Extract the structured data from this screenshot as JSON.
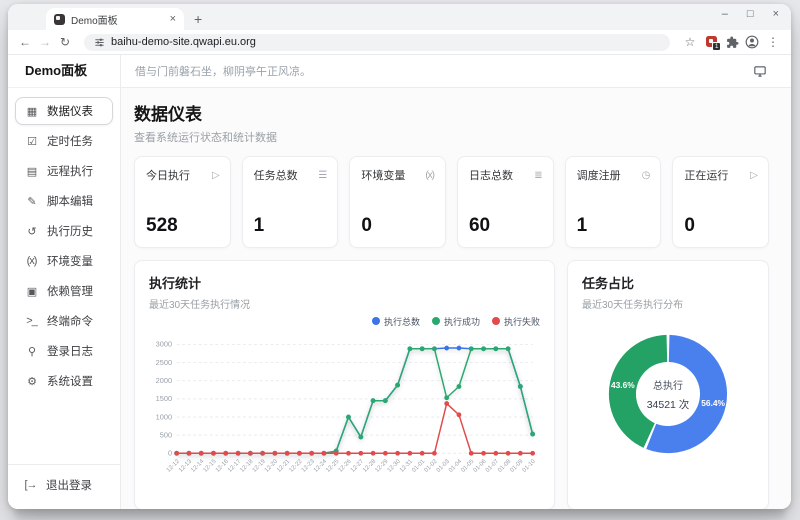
{
  "browser": {
    "tab_title": "Demo面板",
    "url": "baihu-demo-site.qwapi.eu.org",
    "extensions_badge": "1"
  },
  "app": {
    "brand": "Demo面板",
    "topbar": {
      "quote": "借与门前磐石坐，柳阴亭午正风凉。"
    },
    "sidebar": {
      "items": [
        {
          "id": "dashboard",
          "label": "数据仪表",
          "icon": "grid-icon",
          "glyph": "▦",
          "active": true
        },
        {
          "id": "cron-tasks",
          "label": "定时任务",
          "icon": "checklist-icon",
          "glyph": "☑",
          "active": false
        },
        {
          "id": "remote-exec",
          "label": "远程执行",
          "icon": "server-icon",
          "glyph": "▤",
          "active": false
        },
        {
          "id": "script-edit",
          "label": "脚本编辑",
          "icon": "edit-script-icon",
          "glyph": "✎",
          "active": false
        },
        {
          "id": "exec-history",
          "label": "执行历史",
          "icon": "history-icon",
          "glyph": "↺",
          "active": false
        },
        {
          "id": "env-vars",
          "label": "环境变量",
          "icon": "variable-icon",
          "glyph": "(x)",
          "active": false
        },
        {
          "id": "dependencies",
          "label": "依赖管理",
          "icon": "package-icon",
          "glyph": "▣",
          "active": false
        },
        {
          "id": "terminal",
          "label": "终端命令",
          "icon": "terminal-icon",
          "glyph": ">_",
          "active": false
        },
        {
          "id": "login-logs",
          "label": "登录日志",
          "icon": "key-icon",
          "glyph": "⚲",
          "active": false
        },
        {
          "id": "settings",
          "label": "系统设置",
          "icon": "gear-icon",
          "glyph": "⚙",
          "active": false
        }
      ],
      "logout_label": "退出登录"
    },
    "page": {
      "title": "数据仪表",
      "subtitle": "查看系统运行状态和统计数据"
    },
    "stats": [
      {
        "id": "today-exec",
        "label": "今日执行",
        "value": "528",
        "icon": "play-icon",
        "glyph": "▷"
      },
      {
        "id": "task-total",
        "label": "任务总数",
        "value": "1",
        "icon": "checklist-icon",
        "glyph": "☰"
      },
      {
        "id": "env-vars",
        "label": "环境变量",
        "value": "0",
        "icon": "variable-icon",
        "glyph": "(x)"
      },
      {
        "id": "log-total",
        "label": "日志总数",
        "value": "60",
        "icon": "logs-icon",
        "glyph": "≣"
      },
      {
        "id": "schedule-reg",
        "label": "调度注册",
        "value": "1",
        "icon": "clock-icon",
        "glyph": "◷"
      },
      {
        "id": "running",
        "label": "正在运行",
        "value": "0",
        "icon": "play-icon",
        "glyph": "▷"
      }
    ],
    "exec_card": {
      "title": "执行统计",
      "subtitle": "最近30天任务执行情况"
    },
    "pie_card": {
      "title": "任务占比",
      "subtitle": "最近30天任务执行分布",
      "center_label": "总执行",
      "center_value": "34521 次"
    }
  },
  "chart_data": [
    {
      "type": "line",
      "title": "执行统计",
      "x": [
        "12-12",
        "12-13",
        "12-14",
        "12-15",
        "12-16",
        "12-17",
        "12-18",
        "12-19",
        "12-20",
        "12-21",
        "12-22",
        "12-23",
        "12-24",
        "12-25",
        "12-26",
        "12-27",
        "12-28",
        "12-29",
        "12-30",
        "12-31",
        "01-01",
        "01-02",
        "01-03",
        "01-04",
        "01-05",
        "01-06",
        "01-07",
        "01-08",
        "01-09",
        "01-10"
      ],
      "series": [
        {
          "name": "执行总数",
          "color": "#3b74e6",
          "values": [
            0,
            0,
            0,
            0,
            0,
            0,
            0,
            0,
            0,
            0,
            0,
            0,
            0,
            60,
            1000,
            450,
            1450,
            1450,
            1880,
            2880,
            2880,
            2880,
            2900,
            2900,
            2880,
            2880,
            2880,
            2880,
            1840,
            530
          ]
        },
        {
          "name": "执行成功",
          "color": "#2aa96e",
          "values": [
            0,
            0,
            0,
            0,
            0,
            0,
            0,
            0,
            0,
            0,
            0,
            0,
            0,
            60,
            1000,
            450,
            1450,
            1450,
            1880,
            2880,
            2880,
            2880,
            1530,
            1840,
            2880,
            2880,
            2880,
            2880,
            1840,
            530
          ]
        },
        {
          "name": "执行失败",
          "color": "#e14b4b",
          "values": [
            0,
            0,
            0,
            0,
            0,
            0,
            0,
            0,
            0,
            0,
            0,
            0,
            0,
            0,
            0,
            0,
            0,
            0,
            0,
            0,
            0,
            0,
            1370,
            1060,
            0,
            0,
            0,
            0,
            0,
            0
          ]
        }
      ],
      "ylim": [
        0,
        3000
      ],
      "yticks": [
        0,
        500,
        1000,
        1500,
        2000,
        2500,
        3000
      ],
      "grid": true,
      "legend_position": "top-right"
    },
    {
      "type": "pie",
      "title": "任务占比",
      "slices": [
        {
          "label": "56.4%",
          "value": 56.4,
          "color": "#4a80ee"
        },
        {
          "label": "43.6%",
          "value": 43.6,
          "color": "#24a164"
        }
      ],
      "center_label": "总执行",
      "center_value": "34521 次"
    }
  ]
}
